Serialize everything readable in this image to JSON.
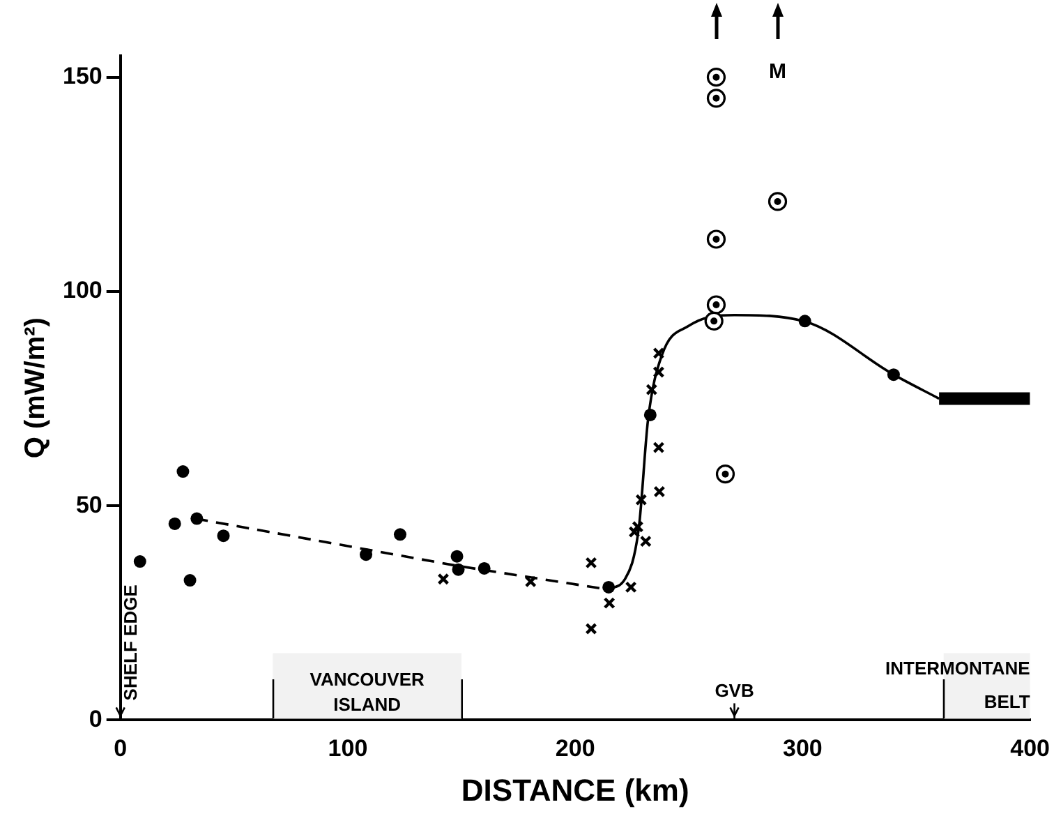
{
  "chart_data": {
    "type": "scatter",
    "xlabel": "DISTANCE (km)",
    "ylabel": "Q (mW/m²)",
    "xlim": [
      0,
      400
    ],
    "xticks": [
      0,
      100,
      200,
      300,
      400
    ],
    "ylim": [
      0,
      155
    ],
    "yticks": [
      0,
      50,
      100,
      150
    ],
    "grid": false,
    "legend": false,
    "series": [
      {
        "marker": "circle",
        "color": "#000000",
        "x": [
          8.6,
          23.9,
          27.5,
          30.6,
          33.6,
          45.3,
          108,
          123,
          148,
          148.6,
          160,
          214.7,
          233,
          301,
          340
        ],
        "values": [
          37,
          45.8,
          58,
          32.6,
          47,
          43,
          38.6,
          43.3,
          38.2,
          35.1,
          35.4,
          31,
          71.2,
          93.1,
          80.6
        ]
      },
      {
        "marker": "cross",
        "color": "#000000",
        "x": [
          142,
          180.4,
          207,
          207,
          215,
          224.5,
          226,
          227.5,
          231,
          229,
          237,
          236.7,
          233.6,
          236.7,
          236.7
        ],
        "values": [
          32.9,
          32.3,
          36.7,
          21.3,
          27.3,
          31,
          43.9,
          45.1,
          41.7,
          51.4,
          53.3,
          63.6,
          77.1,
          81.2,
          85.6
        ]
      },
      {
        "marker": "circle",
        "color": "#ffffff",
        "x": [
          262,
          262,
          262,
          262,
          261,
          266,
          289
        ],
        "values": [
          150,
          145.1,
          112.2,
          96.9,
          93.1,
          57.4,
          121
        ]
      },
      {
        "type": "line",
        "line_style": "dashed",
        "color": "#000000",
        "x": [
          33,
          148,
          214
        ],
        "values": [
          47,
          36,
          30.5
        ]
      },
      {
        "type": "line",
        "line_style": "solid",
        "color": "#000000",
        "x": [
          214,
          222,
          228,
          232,
          238,
          250,
          270,
          301,
          340,
          360
        ],
        "values": [
          30.5,
          33,
          45,
          70,
          85,
          92,
          94.5,
          93,
          80.6,
          75
        ]
      },
      {
        "type": "line",
        "line_style": "solid",
        "color": "#000000",
        "x": [
          360,
          400
        ],
        "values": [
          75,
          75
        ]
      }
    ],
    "ref_lines": [
      {
        "axis": "x",
        "value": 0,
        "label": "SHELF EDGE"
      },
      {
        "axis": "x",
        "value": 270,
        "label": "GVB"
      }
    ],
    "bands": [
      {
        "axis": "x",
        "from": 67,
        "to": 150,
        "label": "VANCOUVER ISLAND",
        "color": "#f2f2f2"
      },
      {
        "axis": "x",
        "from": 362,
        "to": 400,
        "label": "INTERMONTANE BELT",
        "color": "#f2f2f2"
      }
    ],
    "annotations": [
      "M"
    ]
  }
}
